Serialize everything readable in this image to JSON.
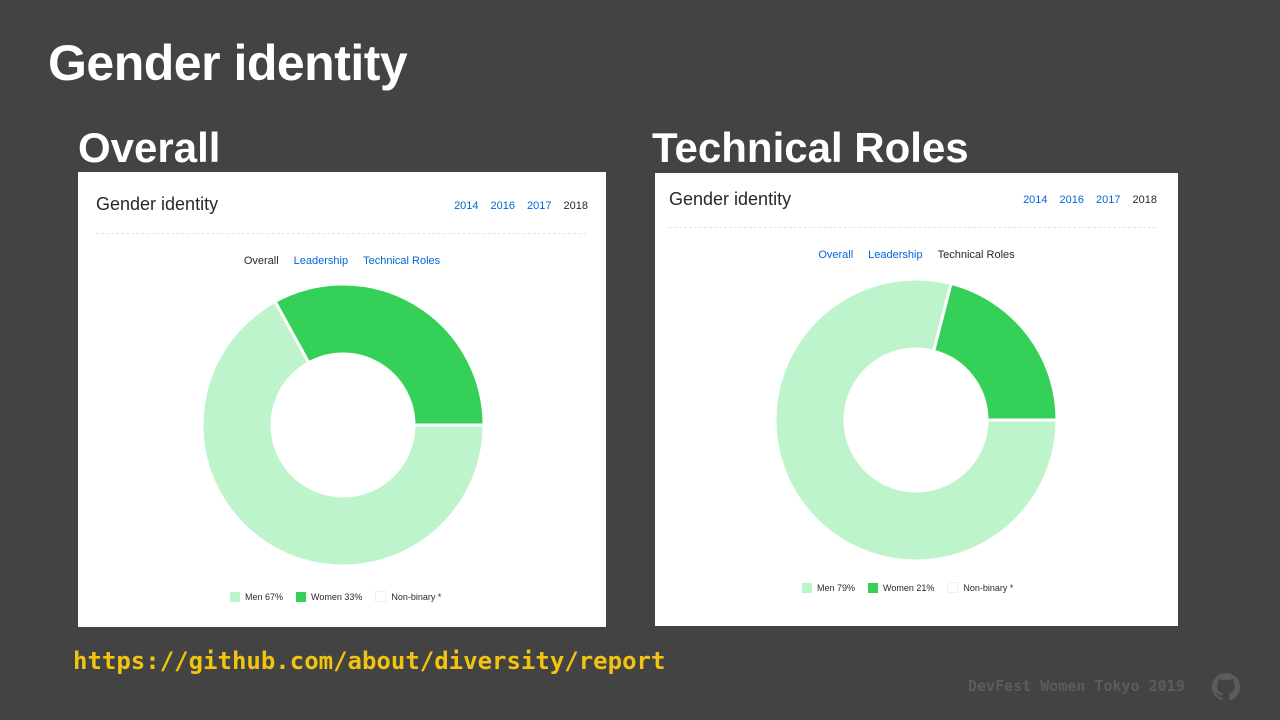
{
  "slide": {
    "title": "Gender identity",
    "url": "https://github.com/about/diversity/report",
    "footer": "DevFest Women Tokyo 2019",
    "footer_icon": "github-icon"
  },
  "colors": {
    "background": "#434343",
    "men": "#bdf4cb",
    "women": "#34d058",
    "link": "#0366d6",
    "url": "#f1c40f"
  },
  "panels": [
    {
      "heading": "Overall",
      "card_title": "Gender identity",
      "years": [
        "2014",
        "2016",
        "2017",
        "2018"
      ],
      "active_year": "2018",
      "tabs": [
        "Overall",
        "Leadership",
        "Technical Roles"
      ],
      "active_tab": "Overall",
      "legend": [
        "Men 67%",
        "Women 33%",
        "Non-binary *"
      ]
    },
    {
      "heading": "Technical Roles",
      "card_title": "Gender identity",
      "years": [
        "2014",
        "2016",
        "2017",
        "2018"
      ],
      "active_year": "2018",
      "tabs": [
        "Overall",
        "Leadership",
        "Technical Roles"
      ],
      "active_tab": "Technical Roles",
      "legend": [
        "Men 79%",
        "Women 21%",
        "Non-binary *"
      ]
    }
  ],
  "chart_data": [
    {
      "type": "pie",
      "title": "Gender identity",
      "categories": [
        "Men",
        "Women",
        "Non-binary *"
      ],
      "values": [
        67,
        33,
        0
      ]
    },
    {
      "type": "pie",
      "title": "Gender identity",
      "categories": [
        "Men",
        "Women",
        "Non-binary *"
      ],
      "values": [
        79,
        21,
        0
      ]
    }
  ]
}
